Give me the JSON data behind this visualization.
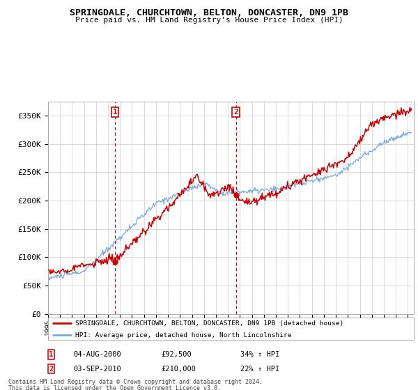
{
  "title": "SPRINGDALE, CHURCHTOWN, BELTON, DONCASTER, DN9 1PB",
  "subtitle": "Price paid vs. HM Land Registry's House Price Index (HPI)",
  "legend_line1": "SPRINGDALE, CHURCHTOWN, BELTON, DONCASTER, DN9 1PB (detached house)",
  "legend_line2": "HPI: Average price, detached house, North Lincolnshire",
  "annotation1_date": "04-AUG-2000",
  "annotation1_price": "£92,500",
  "annotation1_hpi": "34% ↑ HPI",
  "annotation2_date": "03-SEP-2010",
  "annotation2_price": "£210,000",
  "annotation2_hpi": "22% ↑ HPI",
  "footnote1": "Contains HM Land Registry data © Crown copyright and database right 2024.",
  "footnote2": "This data is licensed under the Open Government Licence v3.0.",
  "property_color": "#cc0000",
  "hpi_color": "#7aaadd",
  "ylim": [
    0,
    375000
  ],
  "yticks": [
    0,
    50000,
    100000,
    150000,
    200000,
    250000,
    300000,
    350000
  ],
  "ytick_labels": [
    "£0",
    "£50K",
    "£100K",
    "£150K",
    "£200K",
    "£250K",
    "£300K",
    "£350K"
  ],
  "xlim_start": 1995,
  "xlim_end": 2025.5,
  "background_color": "#ffffff",
  "grid_color": "#cccccc",
  "marker1_x": 2000.58,
  "marker1_y": 92500,
  "marker2_x": 2010.67,
  "marker2_y": 210000
}
